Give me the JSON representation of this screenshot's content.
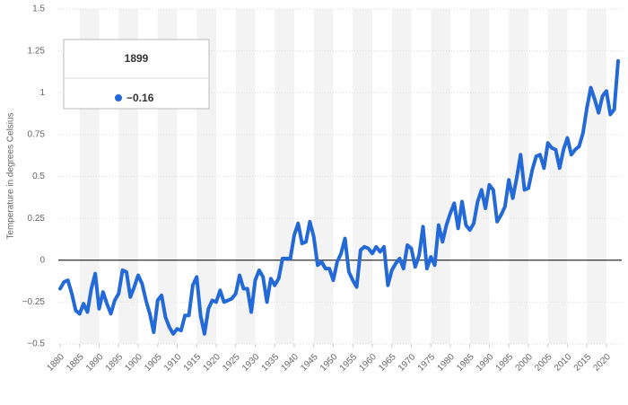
{
  "chart_data": {
    "type": "line",
    "y_label": "Temperature in degrees Celsius",
    "x": [
      1880,
      1881,
      1882,
      1883,
      1884,
      1885,
      1886,
      1887,
      1888,
      1889,
      1890,
      1891,
      1892,
      1893,
      1894,
      1895,
      1896,
      1897,
      1898,
      1899,
      1900,
      1901,
      1902,
      1903,
      1904,
      1905,
      1906,
      1907,
      1908,
      1909,
      1910,
      1911,
      1912,
      1913,
      1914,
      1915,
      1916,
      1917,
      1918,
      1919,
      1920,
      1921,
      1922,
      1923,
      1924,
      1925,
      1926,
      1927,
      1928,
      1929,
      1930,
      1931,
      1932,
      1933,
      1934,
      1935,
      1936,
      1937,
      1938,
      1939,
      1940,
      1941,
      1942,
      1943,
      1944,
      1945,
      1946,
      1947,
      1948,
      1949,
      1950,
      1951,
      1952,
      1953,
      1954,
      1955,
      1956,
      1957,
      1958,
      1959,
      1960,
      1961,
      1962,
      1963,
      1964,
      1965,
      1966,
      1967,
      1968,
      1969,
      1970,
      1971,
      1972,
      1973,
      1974,
      1975,
      1976,
      1977,
      1978,
      1979,
      1980,
      1981,
      1982,
      1983,
      1984,
      1985,
      1986,
      1987,
      1988,
      1989,
      1990,
      1991,
      1992,
      1993,
      1994,
      1995,
      1996,
      1997,
      1998,
      1999,
      2000,
      2001,
      2002,
      2003,
      2004,
      2005,
      2006,
      2007,
      2008,
      2009,
      2010,
      2011,
      2012,
      2013,
      2014,
      2015,
      2016,
      2017,
      2018,
      2019,
      2020,
      2021,
      2022,
      2023
    ],
    "series": [
      {
        "name": "Temperature",
        "color": "#2469d8",
        "values": [
          -0.17,
          -0.13,
          -0.12,
          -0.2,
          -0.3,
          -0.32,
          -0.26,
          -0.31,
          -0.17,
          -0.08,
          -0.29,
          -0.19,
          -0.26,
          -0.32,
          -0.24,
          -0.2,
          -0.06,
          -0.07,
          -0.22,
          -0.16,
          -0.09,
          -0.14,
          -0.24,
          -0.32,
          -0.43,
          -0.24,
          -0.21,
          -0.34,
          -0.4,
          -0.44,
          -0.41,
          -0.42,
          -0.33,
          -0.33,
          -0.15,
          -0.1,
          -0.33,
          -0.44,
          -0.29,
          -0.24,
          -0.25,
          -0.18,
          -0.25,
          -0.24,
          -0.23,
          -0.2,
          -0.09,
          -0.17,
          -0.17,
          -0.31,
          -0.12,
          -0.06,
          -0.1,
          -0.25,
          -0.11,
          -0.15,
          -0.11,
          0.01,
          0.01,
          0.01,
          0.15,
          0.22,
          0.1,
          0.11,
          0.23,
          0.14,
          -0.03,
          -0.01,
          -0.05,
          -0.05,
          -0.12,
          -0.01,
          0.04,
          0.13,
          -0.07,
          -0.12,
          -0.16,
          0.06,
          0.08,
          0.07,
          0.04,
          0.08,
          0.05,
          0.08,
          -0.15,
          -0.06,
          -0.02,
          0.01,
          -0.05,
          0.09,
          0.07,
          -0.04,
          0.03,
          0.2,
          -0.05,
          0.02,
          -0.03,
          0.21,
          0.11,
          0.21,
          0.28,
          0.34,
          0.19,
          0.35,
          0.21,
          0.18,
          0.22,
          0.35,
          0.42,
          0.31,
          0.45,
          0.42,
          0.23,
          0.27,
          0.32,
          0.48,
          0.37,
          0.49,
          0.63,
          0.42,
          0.43,
          0.54,
          0.62,
          0.63,
          0.55,
          0.7,
          0.67,
          0.66,
          0.55,
          0.66,
          0.73,
          0.63,
          0.66,
          0.68,
          0.76,
          0.91,
          1.03,
          0.96,
          0.88,
          0.98,
          1.01,
          0.87,
          0.9,
          1.19
        ]
      }
    ],
    "xlim": [
      1880,
      2023
    ],
    "xticks": [
      1880,
      1885,
      1890,
      1895,
      1900,
      1905,
      1910,
      1915,
      1920,
      1925,
      1930,
      1935,
      1940,
      1945,
      1950,
      1955,
      1960,
      1965,
      1970,
      1975,
      1980,
      1985,
      1990,
      1995,
      2000,
      2005,
      2010,
      2015,
      2020
    ],
    "ylim": [
      -0.5,
      1.5
    ],
    "yticks": [
      {
        "value": -0.5,
        "label": "−0.5"
      },
      {
        "value": -0.25,
        "label": "−0.25"
      },
      0,
      0.25,
      0.5,
      0.75,
      1,
      1.25,
      1.5
    ],
    "grid": true,
    "tooltip": {
      "year": 1899,
      "value": -0.16,
      "label": "−0.16"
    }
  }
}
